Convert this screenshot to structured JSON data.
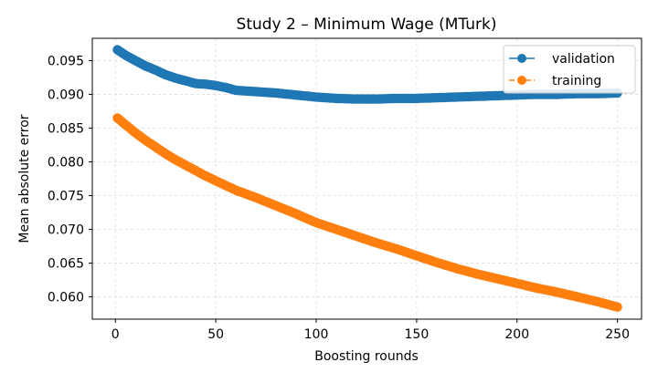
{
  "chart_data": {
    "type": "line",
    "title": "Study 2 – Minimum Wage (MTurk)",
    "xlabel": "Boosting rounds",
    "ylabel": "Mean absolute error",
    "xlim": [
      -11.5,
      262
    ],
    "ylim": [
      0.0567,
      0.0983
    ],
    "x_ticks": [
      0,
      50,
      100,
      150,
      200,
      250
    ],
    "y_ticks": [
      0.06,
      0.065,
      0.07,
      0.075,
      0.08,
      0.085,
      0.09,
      0.095
    ],
    "y_tick_labels": [
      "0.060",
      "0.065",
      "0.070",
      "0.075",
      "0.080",
      "0.085",
      "0.090",
      "0.095"
    ],
    "grid": true,
    "legend_position": "top-right",
    "series": [
      {
        "name": "validation",
        "color": "#1f77b4",
        "line_style": "solid",
        "marker": "circle",
        "x_range": [
          1,
          250
        ],
        "points": [
          [
            1,
            0.0966
          ],
          [
            5,
            0.0958
          ],
          [
            10,
            0.095
          ],
          [
            15,
            0.0942
          ],
          [
            20,
            0.0936
          ],
          [
            25,
            0.0929
          ],
          [
            30,
            0.0924
          ],
          [
            35,
            0.092
          ],
          [
            40,
            0.0916
          ],
          [
            45,
            0.0915
          ],
          [
            50,
            0.0913
          ],
          [
            55,
            0.091
          ],
          [
            60,
            0.0906
          ],
          [
            70,
            0.0904
          ],
          [
            80,
            0.0902
          ],
          [
            90,
            0.0899
          ],
          [
            100,
            0.0896
          ],
          [
            110,
            0.0894
          ],
          [
            120,
            0.0893
          ],
          [
            130,
            0.0893
          ],
          [
            140,
            0.0894
          ],
          [
            150,
            0.0894
          ],
          [
            160,
            0.0895
          ],
          [
            170,
            0.0896
          ],
          [
            180,
            0.0897
          ],
          [
            190,
            0.0898
          ],
          [
            200,
            0.0899
          ],
          [
            210,
            0.09
          ],
          [
            220,
            0.09
          ],
          [
            230,
            0.0901
          ],
          [
            240,
            0.0901
          ],
          [
            250,
            0.0902
          ]
        ]
      },
      {
        "name": "training",
        "color": "#ff7f0e",
        "line_style": "dashed",
        "marker": "circle",
        "x_range": [
          1,
          250
        ],
        "points": [
          [
            1,
            0.0865
          ],
          [
            5,
            0.0855
          ],
          [
            10,
            0.0843
          ],
          [
            15,
            0.0832
          ],
          [
            20,
            0.0822
          ],
          [
            25,
            0.0812
          ],
          [
            30,
            0.0803
          ],
          [
            35,
            0.0795
          ],
          [
            40,
            0.0787
          ],
          [
            45,
            0.0779
          ],
          [
            50,
            0.0772
          ],
          [
            55,
            0.0765
          ],
          [
            60,
            0.0758
          ],
          [
            70,
            0.0747
          ],
          [
            80,
            0.0735
          ],
          [
            90,
            0.0723
          ],
          [
            100,
            0.071
          ],
          [
            110,
            0.07
          ],
          [
            120,
            0.069
          ],
          [
            130,
            0.068
          ],
          [
            140,
            0.0671
          ],
          [
            150,
            0.0661
          ],
          [
            160,
            0.0651
          ],
          [
            170,
            0.0642
          ],
          [
            180,
            0.0634
          ],
          [
            190,
            0.0627
          ],
          [
            200,
            0.062
          ],
          [
            210,
            0.0613
          ],
          [
            220,
            0.0607
          ],
          [
            230,
            0.06
          ],
          [
            240,
            0.0593
          ],
          [
            250,
            0.0585
          ]
        ]
      }
    ]
  }
}
